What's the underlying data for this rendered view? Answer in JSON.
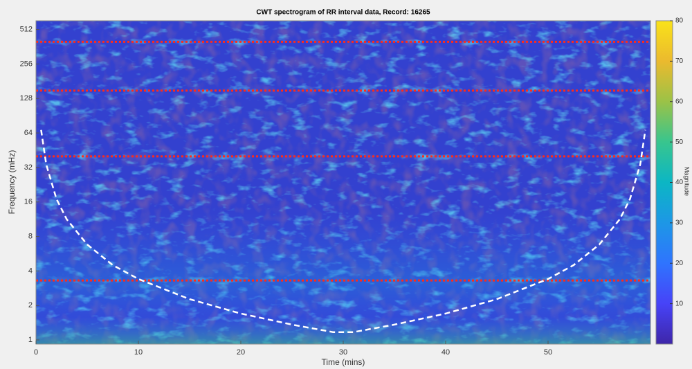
{
  "chart_data": {
    "type": "spectrogram",
    "title": "CWT spectrogram of RR interval data, Record: 16265",
    "x_label": "Time (mins)",
    "y_label": "Frequency (mHz)",
    "xlim": [
      0,
      60
    ],
    "xticks": [
      0,
      10,
      20,
      30,
      40,
      50
    ],
    "ylim": [
      0.92,
      610
    ],
    "yticks": [
      1,
      2,
      4,
      8,
      16,
      32,
      64,
      128,
      256,
      512
    ],
    "y_scale": "log2",
    "grid": false,
    "colorbar": {
      "label": "Magnitude",
      "lim": [
        0,
        80
      ],
      "ticks": [
        10,
        20,
        30,
        40,
        50,
        60,
        70,
        80
      ],
      "colormap": [
        "#3e26a8",
        "#4743f8",
        "#2f74fe",
        "#1d97e6",
        "#0cb6c4",
        "#38c58e",
        "#9bc247",
        "#ebba2e",
        "#f9e21a"
      ]
    },
    "reference_lines": {
      "values": [
        400,
        150,
        40,
        3.3
      ],
      "color": "#ff2a1a"
    },
    "cone_of_influence": {
      "color": "#ffffff",
      "x": [
        0.5,
        1,
        2,
        3,
        5,
        7.5,
        10,
        15,
        20,
        25,
        29,
        31,
        35,
        40,
        45,
        50,
        52.5,
        55,
        57,
        58,
        59,
        59.5
      ],
      "values": [
        68,
        34,
        17,
        11.3,
        6.8,
        4.5,
        3.4,
        2.27,
        1.7,
        1.36,
        1.17,
        1.17,
        1.36,
        1.7,
        2.27,
        3.4,
        4.5,
        6.8,
        11.3,
        17,
        34,
        68
      ]
    }
  }
}
